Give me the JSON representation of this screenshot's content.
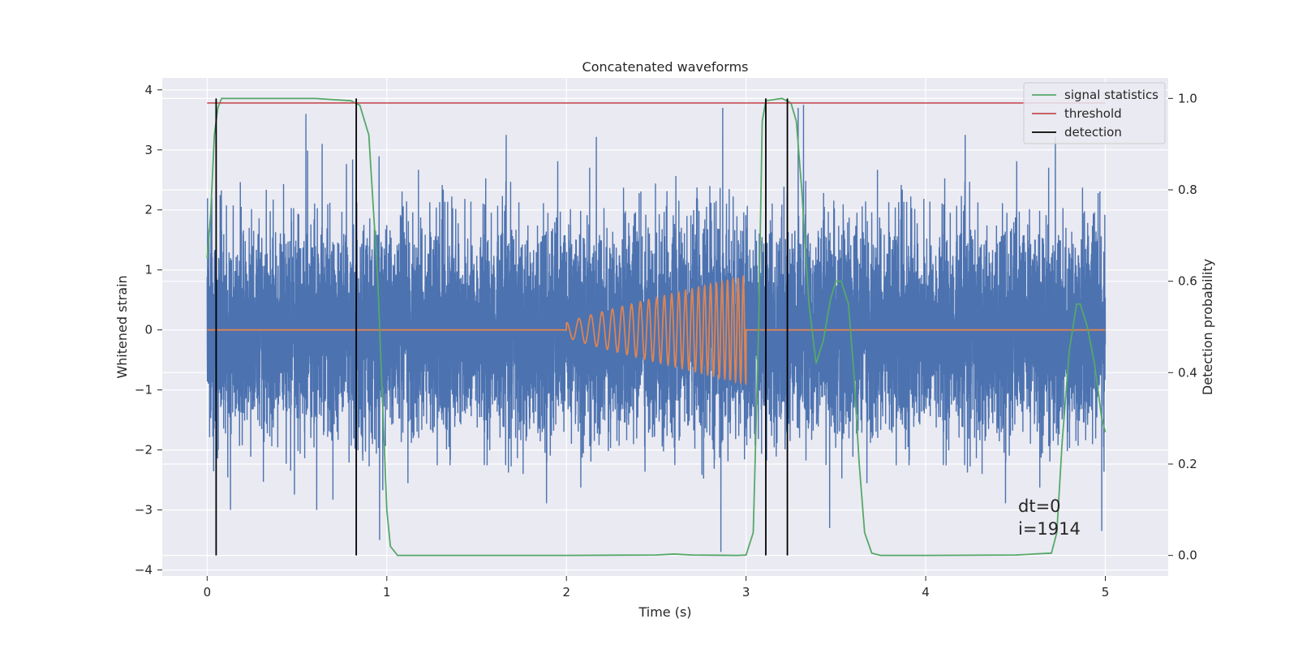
{
  "chart_data": {
    "type": "line",
    "title": "Concatenated waveforms",
    "xlabel": "Time (s)",
    "ylabel_left": "Whitened strain",
    "ylabel_right": "Detection probability",
    "xlim": [
      -0.25,
      5.35
    ],
    "ylim_left": [
      -4.1,
      4.2
    ],
    "ylim_right": [
      -0.045,
      1.045
    ],
    "x_ticks": [
      0,
      1,
      2,
      3,
      4,
      5
    ],
    "x_tick_labels": [
      "0",
      "1",
      "2",
      "3",
      "4",
      "5"
    ],
    "y_left_ticks": [
      -4,
      -3,
      -2,
      -1,
      0,
      1,
      2,
      3,
      4
    ],
    "y_left_tick_labels": [
      "−4",
      "−3",
      "−2",
      "−1",
      "0",
      "1",
      "2",
      "3",
      "4"
    ],
    "y_right_ticks": [
      0.0,
      0.2,
      0.4,
      0.6,
      0.8,
      1.0
    ],
    "y_right_tick_labels": [
      "0.0",
      "0.2",
      "0.4",
      "0.6",
      "0.8",
      "1.0"
    ],
    "grid": true,
    "legend_position": "top-right",
    "colors": {
      "background": "#eaeaf2",
      "grid": "#ffffff",
      "strain": "#4c72b0",
      "template": "#dd8452",
      "signal_statistics": "#55a868",
      "threshold": "#c44e52",
      "detection": "#000000"
    },
    "series": [
      {
        "name": "signal statistics",
        "axis": "right",
        "points": [
          [
            0.0,
            0.65
          ],
          [
            0.02,
            0.75
          ],
          [
            0.04,
            0.92
          ],
          [
            0.06,
            0.98
          ],
          [
            0.08,
            1.0
          ],
          [
            0.3,
            1.0
          ],
          [
            0.6,
            1.0
          ],
          [
            0.8,
            0.995
          ],
          [
            0.85,
            0.985
          ],
          [
            0.9,
            0.92
          ],
          [
            0.95,
            0.6
          ],
          [
            0.98,
            0.3
          ],
          [
            1.0,
            0.1
          ],
          [
            1.02,
            0.02
          ],
          [
            1.06,
            0.0
          ],
          [
            1.5,
            0.0
          ],
          [
            2.0,
            0.0
          ],
          [
            2.5,
            0.001
          ],
          [
            2.6,
            0.003
          ],
          [
            2.7,
            0.001
          ],
          [
            2.95,
            0.0
          ],
          [
            3.0,
            0.001
          ],
          [
            3.04,
            0.05
          ],
          [
            3.07,
            0.5
          ],
          [
            3.09,
            0.95
          ],
          [
            3.11,
            0.995
          ],
          [
            3.2,
            1.0
          ],
          [
            3.25,
            0.99
          ],
          [
            3.28,
            0.95
          ],
          [
            3.31,
            0.8
          ],
          [
            3.35,
            0.55
          ],
          [
            3.39,
            0.42
          ],
          [
            3.43,
            0.47
          ],
          [
            3.47,
            0.56
          ],
          [
            3.5,
            0.6
          ],
          [
            3.53,
            0.6
          ],
          [
            3.57,
            0.55
          ],
          [
            3.6,
            0.4
          ],
          [
            3.63,
            0.2
          ],
          [
            3.66,
            0.05
          ],
          [
            3.7,
            0.005
          ],
          [
            3.75,
            0.0
          ],
          [
            4.0,
            0.0
          ],
          [
            4.5,
            0.001
          ],
          [
            4.7,
            0.005
          ],
          [
            4.73,
            0.05
          ],
          [
            4.76,
            0.25
          ],
          [
            4.8,
            0.45
          ],
          [
            4.84,
            0.55
          ],
          [
            4.86,
            0.55
          ],
          [
            4.9,
            0.5
          ],
          [
            4.94,
            0.42
          ],
          [
            4.98,
            0.3
          ],
          [
            5.0,
            0.27
          ]
        ]
      },
      {
        "name": "threshold",
        "axis": "right",
        "points": [
          [
            0.0,
            0.99
          ],
          [
            5.0,
            0.99
          ]
        ]
      },
      {
        "name": "detection",
        "axis": "right",
        "x": [
          0.05,
          0.83,
          3.11,
          3.23
        ],
        "y_range": [
          0.0,
          1.0
        ]
      }
    ],
    "strain": {
      "axis": "left",
      "x_range": [
        0.0,
        5.0
      ],
      "sample_rate": 2048,
      "spikes": [
        {
          "t": 2.86,
          "v": -3.7
        },
        {
          "t": 2.87,
          "v": 3.7
        },
        {
          "t": 3.29,
          "v": 3.7
        },
        {
          "t": 3.32,
          "v": 3.75
        },
        {
          "t": 0.55,
          "v": 3.6
        },
        {
          "t": 0.64,
          "v": 3.1
        },
        {
          "t": 0.13,
          "v": -3.0
        },
        {
          "t": 0.61,
          "v": -3.0
        },
        {
          "t": 4.98,
          "v": -3.35
        },
        {
          "t": 0.96,
          "v": -3.5
        }
      ]
    },
    "template": {
      "axis": "left",
      "start": 2.0,
      "end": 3.0,
      "amp_start": 0.12,
      "amp_end": 0.9,
      "f_start": 14,
      "f_end": 36
    },
    "legend": [
      {
        "label": "signal statistics",
        "color": "#55a868"
      },
      {
        "label": "threshold",
        "color": "#c44e52"
      },
      {
        "label": "detection",
        "color": "#000000"
      }
    ],
    "annotations": [
      "dt=0",
      "i=1914"
    ]
  }
}
